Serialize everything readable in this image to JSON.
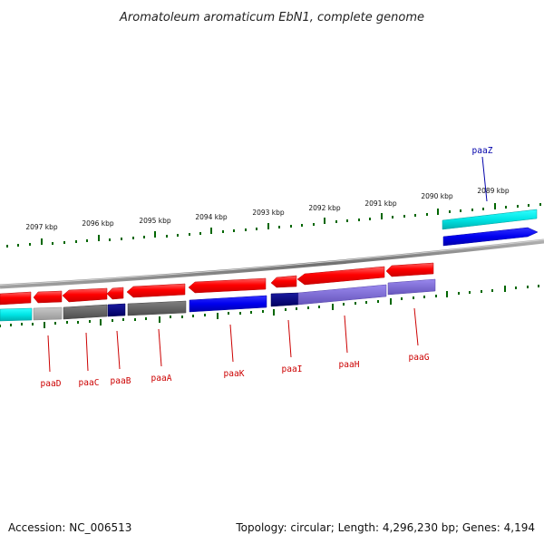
{
  "title": "Aromatoleum aromaticum EbN1, complete genome",
  "accession_text": "Accession: NC_006513",
  "summary_text": "Topology: circular; Length: 4,296,230 bp; Genes: 4,194",
  "scale_labels": [
    "2097 kbp",
    "2096 kbp",
    "2095 kbp",
    "2094 kbp",
    "2093 kbp",
    "2092 kbp",
    "2091 kbp",
    "2090 kbp",
    "2089 kbp"
  ],
  "genes": [
    {
      "name": "paaZ",
      "strand": "top",
      "color": "#0000aa"
    },
    {
      "name": "paaD",
      "strand": "bottom",
      "color": "#cc0000"
    },
    {
      "name": "paaC",
      "strand": "bottom",
      "color": "#cc0000"
    },
    {
      "name": "paaB",
      "strand": "bottom",
      "color": "#cc0000"
    },
    {
      "name": "paaA",
      "strand": "bottom",
      "color": "#cc0000"
    },
    {
      "name": "paaK",
      "strand": "bottom",
      "color": "#cc0000"
    },
    {
      "name": "paaI",
      "strand": "bottom",
      "color": "#cc0000"
    },
    {
      "name": "paaH",
      "strand": "bottom",
      "color": "#cc0000"
    },
    {
      "name": "paaG",
      "strand": "bottom",
      "color": "#cc0000"
    }
  ],
  "colors": {
    "feature_red": "#ff0000",
    "feature_blue": "#0000ee",
    "feature_cyan": "#00e5e5",
    "feature_navy": "#000080",
    "feature_gray": "#666666",
    "feature_lightgray": "#aaaaaa",
    "feature_violet": "#7766cc",
    "backbone": "#888888",
    "tick_green": "#006600"
  }
}
